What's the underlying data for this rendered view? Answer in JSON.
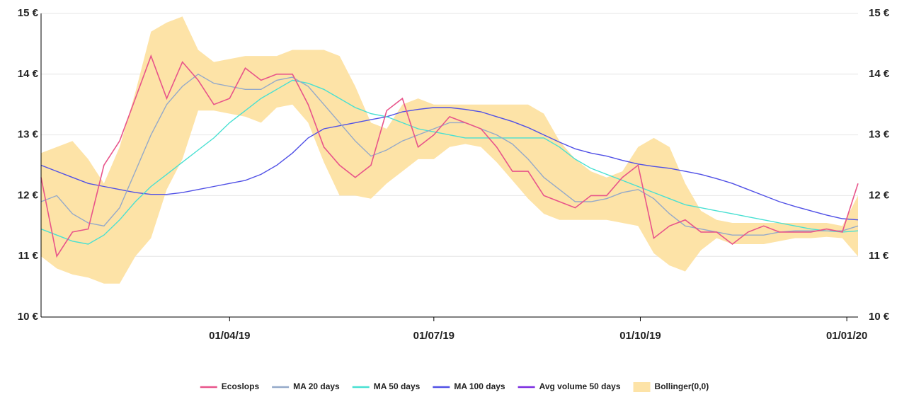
{
  "chart_data": {
    "type": "line",
    "x": [
      "2019-01-07",
      "2019-01-14",
      "2019-01-21",
      "2019-01-28",
      "2019-02-04",
      "2019-02-11",
      "2019-02-18",
      "2019-02-25",
      "2019-03-04",
      "2019-03-11",
      "2019-03-18",
      "2019-03-25",
      "2019-04-01",
      "2019-04-08",
      "2019-04-15",
      "2019-04-22",
      "2019-04-29",
      "2019-05-06",
      "2019-05-13",
      "2019-05-20",
      "2019-05-27",
      "2019-06-03",
      "2019-06-10",
      "2019-06-17",
      "2019-06-24",
      "2019-07-01",
      "2019-07-08",
      "2019-07-15",
      "2019-07-22",
      "2019-07-29",
      "2019-08-05",
      "2019-08-12",
      "2019-08-19",
      "2019-08-26",
      "2019-09-02",
      "2019-09-09",
      "2019-09-16",
      "2019-09-23",
      "2019-09-30",
      "2019-10-07",
      "2019-10-14",
      "2019-10-21",
      "2019-10-28",
      "2019-11-04",
      "2019-11-11",
      "2019-11-18",
      "2019-11-25",
      "2019-12-02",
      "2019-12-09",
      "2019-12-16",
      "2019-12-23",
      "2019-12-30",
      "2020-01-06"
    ],
    "series": [
      {
        "name": "Ecoslops",
        "color": "#e8548a",
        "values": [
          12.3,
          11.0,
          11.4,
          11.45,
          12.5,
          12.9,
          13.6,
          14.3,
          13.6,
          14.2,
          13.9,
          13.5,
          13.6,
          14.1,
          13.9,
          14.0,
          14.0,
          13.5,
          12.8,
          12.5,
          12.3,
          12.5,
          13.4,
          13.6,
          12.8,
          13.0,
          13.3,
          13.2,
          13.1,
          12.8,
          12.4,
          12.4,
          12.0,
          11.9,
          11.8,
          12.0,
          12.0,
          12.3,
          12.5,
          11.3,
          11.5,
          11.6,
          11.4,
          11.4,
          11.2,
          11.4,
          11.5,
          11.4,
          11.4,
          11.4,
          11.45,
          11.4,
          12.2
        ]
      },
      {
        "name": "MA 20 days",
        "color": "#94a9c9",
        "values": [
          11.9,
          12.0,
          11.7,
          11.55,
          11.5,
          11.8,
          12.4,
          13.0,
          13.5,
          13.8,
          14.0,
          13.85,
          13.8,
          13.75,
          13.75,
          13.9,
          13.95,
          13.8,
          13.5,
          13.2,
          12.9,
          12.65,
          12.75,
          12.9,
          13.0,
          13.1,
          13.2,
          13.2,
          13.1,
          13.0,
          12.85,
          12.6,
          12.3,
          12.1,
          11.9,
          11.9,
          11.95,
          12.05,
          12.1,
          11.95,
          11.7,
          11.5,
          11.45,
          11.4,
          11.35,
          11.35,
          11.35,
          11.4,
          11.42,
          11.42,
          11.42,
          11.42,
          11.5
        ]
      },
      {
        "name": "MA 50 days",
        "color": "#48e0d2",
        "values": [
          11.45,
          11.35,
          11.25,
          11.2,
          11.35,
          11.6,
          11.9,
          12.15,
          12.35,
          12.55,
          12.75,
          12.95,
          13.2,
          13.4,
          13.6,
          13.75,
          13.9,
          13.85,
          13.75,
          13.6,
          13.45,
          13.35,
          13.3,
          13.2,
          13.1,
          13.05,
          13.0,
          12.95,
          12.95,
          12.95,
          12.95,
          12.95,
          12.95,
          12.8,
          12.6,
          12.45,
          12.35,
          12.25,
          12.15,
          12.05,
          11.95,
          11.85,
          11.8,
          11.75,
          11.7,
          11.65,
          11.6,
          11.55,
          11.5,
          11.45,
          11.42,
          11.4,
          11.42
        ]
      },
      {
        "name": "MA 100 days",
        "color": "#5050e6",
        "values": [
          12.5,
          12.4,
          12.3,
          12.2,
          12.15,
          12.1,
          12.05,
          12.02,
          12.02,
          12.05,
          12.1,
          12.15,
          12.2,
          12.25,
          12.35,
          12.5,
          12.7,
          12.95,
          13.1,
          13.15,
          13.2,
          13.25,
          13.3,
          13.38,
          13.42,
          13.45,
          13.45,
          13.42,
          13.38,
          13.3,
          13.22,
          13.12,
          13.0,
          12.88,
          12.77,
          12.7,
          12.65,
          12.58,
          12.52,
          12.48,
          12.45,
          12.4,
          12.35,
          12.28,
          12.2,
          12.1,
          12.0,
          11.9,
          11.82,
          11.75,
          11.68,
          11.62,
          11.6
        ]
      },
      {
        "name": "Avg volume 50 days",
        "color": "#7b2be0",
        "values": [
          null,
          null,
          null,
          null,
          null,
          null,
          null,
          null,
          null,
          null,
          null,
          null,
          null,
          null,
          null,
          null,
          null,
          null,
          null,
          null,
          null,
          null,
          null,
          null,
          null,
          null,
          null,
          null,
          null,
          null,
          null,
          null,
          null,
          null,
          null,
          null,
          null,
          null,
          null,
          null,
          null,
          null,
          null,
          null,
          null,
          null,
          null,
          null,
          null,
          null,
          null,
          null,
          null
        ]
      }
    ],
    "bands": {
      "name": "Bollinger(0,0)",
      "color": "#fde3a7",
      "upper": [
        12.7,
        12.8,
        12.9,
        12.6,
        12.2,
        12.8,
        13.7,
        14.7,
        14.85,
        14.95,
        14.4,
        14.2,
        14.25,
        14.3,
        14.3,
        14.3,
        14.4,
        14.4,
        14.4,
        14.3,
        13.8,
        13.2,
        13.1,
        13.5,
        13.6,
        13.5,
        13.5,
        13.5,
        13.5,
        13.5,
        13.5,
        13.5,
        13.35,
        12.9,
        12.6,
        12.4,
        12.3,
        12.4,
        12.8,
        12.95,
        12.8,
        12.2,
        11.75,
        11.6,
        11.55,
        11.55,
        11.55,
        11.55,
        11.55,
        11.55,
        11.55,
        11.5,
        12.0
      ],
      "lower": [
        11.0,
        10.8,
        10.7,
        10.65,
        10.55,
        10.55,
        11.0,
        11.3,
        12.1,
        12.6,
        13.4,
        13.4,
        13.35,
        13.3,
        13.2,
        13.45,
        13.5,
        13.2,
        12.55,
        12.0,
        12.0,
        11.95,
        12.2,
        12.4,
        12.6,
        12.6,
        12.8,
        12.85,
        12.8,
        12.55,
        12.25,
        11.95,
        11.7,
        11.6,
        11.6,
        11.6,
        11.6,
        11.55,
        11.5,
        11.05,
        10.85,
        10.75,
        11.1,
        11.3,
        11.2,
        11.2,
        11.2,
        11.25,
        11.3,
        11.3,
        11.32,
        11.3,
        11.0
      ]
    },
    "xlim": [
      "2019-01-07",
      "2020-01-06"
    ],
    "xticks": [
      {
        "value": "2019-04-01",
        "label": "01/04/19"
      },
      {
        "value": "2019-07-01",
        "label": "01/07/19"
      },
      {
        "value": "2019-10-01",
        "label": "01/10/19"
      },
      {
        "value": "2020-01-01",
        "label": "01/01/20"
      }
    ],
    "ylim": [
      10,
      15
    ],
    "yticks": [
      {
        "value": 10,
        "label": "10 €"
      },
      {
        "value": 11,
        "label": "11 €"
      },
      {
        "value": 12,
        "label": "12 €"
      },
      {
        "value": 13,
        "label": "13 €"
      },
      {
        "value": 14,
        "label": "14 €"
      },
      {
        "value": 15,
        "label": "15 €"
      }
    ],
    "grid": true,
    "legend": "bottom"
  }
}
